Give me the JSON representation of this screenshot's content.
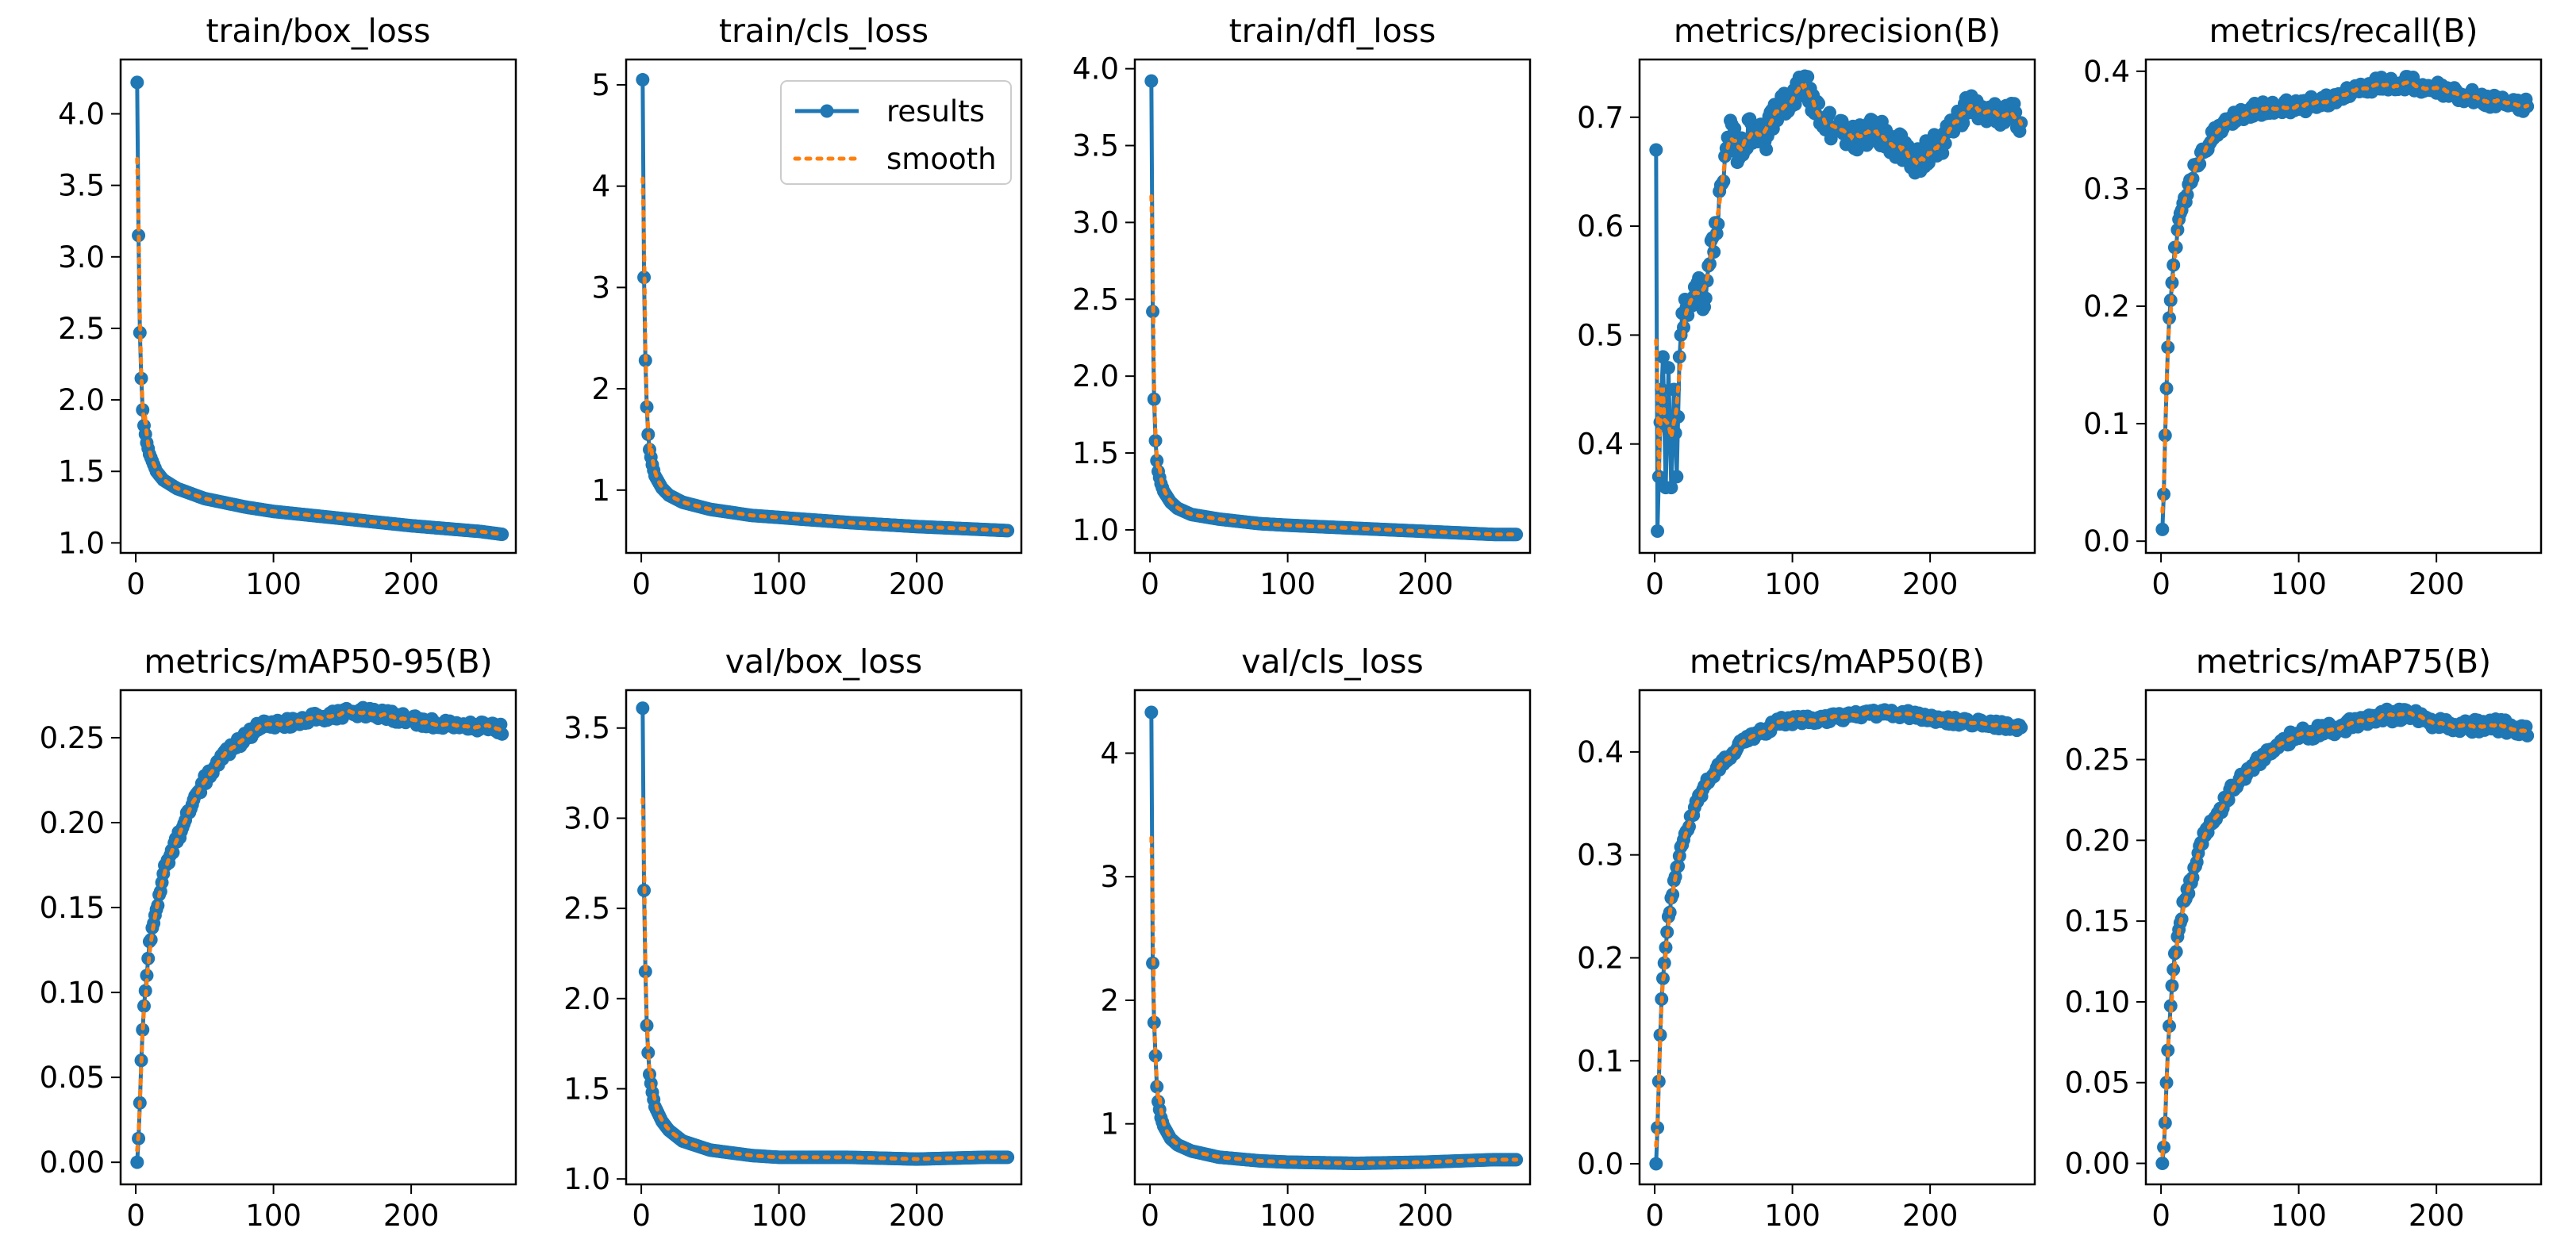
{
  "figure": {
    "legend": {
      "results_label": "results",
      "smooth_label": "smooth",
      "placement": "top-right of train/cls_loss"
    },
    "colors": {
      "results": "#1f77b4",
      "smooth": "#ff7f0e",
      "axes": "#000000"
    },
    "x_ticks": [
      0,
      100,
      200
    ],
    "x_range": [
      -11,
      276
    ]
  },
  "chart_data": [
    {
      "type": "line",
      "title": "train/box_loss",
      "ylim": [
        0.93,
        4.38
      ],
      "yticks": [
        1.0,
        1.5,
        2.0,
        2.5,
        3.0,
        3.5,
        4.0
      ],
      "ytick_labels": [
        "1.0",
        "1.5",
        "2.0",
        "2.5",
        "3.0",
        "3.5",
        "4.0"
      ],
      "anchors": [
        [
          1,
          4.22
        ],
        [
          2,
          3.15
        ],
        [
          3,
          2.47
        ],
        [
          4,
          2.15
        ],
        [
          5,
          1.93
        ],
        [
          6,
          1.82
        ],
        [
          8,
          1.7
        ],
        [
          10,
          1.62
        ],
        [
          15,
          1.5
        ],
        [
          20,
          1.44
        ],
        [
          30,
          1.38
        ],
        [
          50,
          1.31
        ],
        [
          80,
          1.25
        ],
        [
          100,
          1.22
        ],
        [
          150,
          1.17
        ],
        [
          200,
          1.12
        ],
        [
          250,
          1.08
        ],
        [
          266,
          1.06
        ]
      ]
    },
    {
      "type": "line",
      "title": "train/cls_loss",
      "ylim": [
        0.38,
        5.25
      ],
      "yticks": [
        1,
        2,
        3,
        4,
        5
      ],
      "ytick_labels": [
        "1",
        "2",
        "3",
        "4",
        "5"
      ],
      "legend": true,
      "anchors": [
        [
          1,
          5.05
        ],
        [
          2,
          3.1
        ],
        [
          3,
          2.28
        ],
        [
          4,
          1.82
        ],
        [
          5,
          1.55
        ],
        [
          6,
          1.4
        ],
        [
          8,
          1.25
        ],
        [
          10,
          1.14
        ],
        [
          15,
          1.02
        ],
        [
          20,
          0.95
        ],
        [
          30,
          0.88
        ],
        [
          50,
          0.81
        ],
        [
          80,
          0.75
        ],
        [
          100,
          0.73
        ],
        [
          150,
          0.68
        ],
        [
          200,
          0.64
        ],
        [
          250,
          0.61
        ],
        [
          266,
          0.6
        ]
      ]
    },
    {
      "type": "line",
      "title": "train/dfl_loss",
      "ylim": [
        0.85,
        4.06
      ],
      "yticks": [
        1.0,
        1.5,
        2.0,
        2.5,
        3.0,
        3.5,
        4.0
      ],
      "ytick_labels": [
        "1.0",
        "1.5",
        "2.0",
        "2.5",
        "3.0",
        "3.5",
        "4.0"
      ],
      "anchors": [
        [
          1,
          3.92
        ],
        [
          2,
          2.42
        ],
        [
          3,
          1.85
        ],
        [
          4,
          1.58
        ],
        [
          5,
          1.45
        ],
        [
          6,
          1.38
        ],
        [
          8,
          1.3
        ],
        [
          10,
          1.25
        ],
        [
          15,
          1.18
        ],
        [
          20,
          1.14
        ],
        [
          30,
          1.1
        ],
        [
          50,
          1.07
        ],
        [
          80,
          1.04
        ],
        [
          100,
          1.03
        ],
        [
          150,
          1.01
        ],
        [
          200,
          0.99
        ],
        [
          250,
          0.97
        ],
        [
          266,
          0.97
        ]
      ]
    },
    {
      "type": "line",
      "title": "metrics/precision(B)",
      "ylim": [
        0.3,
        0.753
      ],
      "yticks": [
        0.4,
        0.5,
        0.6,
        0.7
      ],
      "ytick_labels": [
        "0.4",
        "0.5",
        "0.6",
        "0.7"
      ],
      "anchors": [
        [
          1,
          0.67
        ],
        [
          2,
          0.32
        ],
        [
          4,
          0.42
        ],
        [
          6,
          0.48
        ],
        [
          8,
          0.36
        ],
        [
          10,
          0.47
        ],
        [
          12,
          0.36
        ],
        [
          14,
          0.45
        ],
        [
          16,
          0.37
        ],
        [
          18,
          0.48
        ],
        [
          20,
          0.52
        ],
        [
          25,
          0.52
        ],
        [
          30,
          0.55
        ],
        [
          35,
          0.53
        ],
        [
          40,
          0.57
        ],
        [
          45,
          0.6
        ],
        [
          50,
          0.65
        ],
        [
          55,
          0.69
        ],
        [
          60,
          0.67
        ],
        [
          70,
          0.69
        ],
        [
          80,
          0.68
        ],
        [
          90,
          0.71
        ],
        [
          100,
          0.72
        ],
        [
          110,
          0.73
        ],
        [
          120,
          0.7
        ],
        [
          130,
          0.69
        ],
        [
          140,
          0.68
        ],
        [
          150,
          0.68
        ],
        [
          160,
          0.69
        ],
        [
          170,
          0.68
        ],
        [
          180,
          0.67
        ],
        [
          190,
          0.66
        ],
        [
          200,
          0.67
        ],
        [
          210,
          0.68
        ],
        [
          220,
          0.7
        ],
        [
          230,
          0.71
        ],
        [
          240,
          0.7
        ],
        [
          250,
          0.7
        ],
        [
          266,
          0.7
        ]
      ],
      "noise": 0.013,
      "noise_after": 20
    },
    {
      "type": "line",
      "title": "metrics/recall(B)",
      "ylim": [
        -0.01,
        0.41
      ],
      "yticks": [
        0.0,
        0.1,
        0.2,
        0.3,
        0.4
      ],
      "ytick_labels": [
        "0.0",
        "0.1",
        "0.2",
        "0.3",
        "0.4"
      ],
      "anchors": [
        [
          1,
          0.01
        ],
        [
          2,
          0.04
        ],
        [
          3,
          0.09
        ],
        [
          4,
          0.13
        ],
        [
          5,
          0.165
        ],
        [
          6,
          0.19
        ],
        [
          8,
          0.22
        ],
        [
          10,
          0.25
        ],
        [
          15,
          0.28
        ],
        [
          20,
          0.3
        ],
        [
          25,
          0.32
        ],
        [
          30,
          0.33
        ],
        [
          40,
          0.35
        ],
        [
          50,
          0.36
        ],
        [
          60,
          0.365
        ],
        [
          80,
          0.37
        ],
        [
          100,
          0.37
        ],
        [
          120,
          0.375
        ],
        [
          140,
          0.385
        ],
        [
          160,
          0.39
        ],
        [
          180,
          0.39
        ],
        [
          200,
          0.385
        ],
        [
          220,
          0.38
        ],
        [
          240,
          0.375
        ],
        [
          266,
          0.37
        ]
      ],
      "noise": 0.006,
      "noise_after": 10
    },
    {
      "type": "line",
      "title": "metrics/mAP50-95(B)",
      "ylim": [
        -0.013,
        0.278
      ],
      "yticks": [
        0.0,
        0.05,
        0.1,
        0.15,
        0.2,
        0.25
      ],
      "ytick_labels": [
        "0.00",
        "0.05",
        "0.10",
        "0.15",
        "0.20",
        "0.25"
      ],
      "anchors": [
        [
          1,
          0.0
        ],
        [
          2,
          0.014
        ],
        [
          3,
          0.035
        ],
        [
          4,
          0.06
        ],
        [
          5,
          0.078
        ],
        [
          6,
          0.092
        ],
        [
          8,
          0.11
        ],
        [
          10,
          0.13
        ],
        [
          15,
          0.15
        ],
        [
          20,
          0.17
        ],
        [
          25,
          0.18
        ],
        [
          30,
          0.19
        ],
        [
          40,
          0.21
        ],
        [
          50,
          0.225
        ],
        [
          60,
          0.235
        ],
        [
          70,
          0.245
        ],
        [
          80,
          0.25
        ],
        [
          90,
          0.257
        ],
        [
          100,
          0.258
        ],
        [
          120,
          0.26
        ],
        [
          140,
          0.263
        ],
        [
          160,
          0.265
        ],
        [
          180,
          0.264
        ],
        [
          200,
          0.26
        ],
        [
          220,
          0.258
        ],
        [
          240,
          0.257
        ],
        [
          266,
          0.255
        ]
      ],
      "noise": 0.003,
      "noise_after": 10
    },
    {
      "type": "line",
      "title": "val/box_loss",
      "ylim": [
        0.97,
        3.71
      ],
      "yticks": [
        1.0,
        1.5,
        2.0,
        2.5,
        3.0,
        3.5
      ],
      "ytick_labels": [
        "1.0",
        "1.5",
        "2.0",
        "2.5",
        "3.0",
        "3.5"
      ],
      "anchors": [
        [
          1,
          3.61
        ],
        [
          2,
          2.6
        ],
        [
          3,
          2.15
        ],
        [
          4,
          1.85
        ],
        [
          5,
          1.7
        ],
        [
          6,
          1.58
        ],
        [
          8,
          1.48
        ],
        [
          10,
          1.4
        ],
        [
          15,
          1.32
        ],
        [
          20,
          1.27
        ],
        [
          30,
          1.21
        ],
        [
          50,
          1.16
        ],
        [
          80,
          1.13
        ],
        [
          100,
          1.12
        ],
        [
          150,
          1.12
        ],
        [
          200,
          1.11
        ],
        [
          250,
          1.12
        ],
        [
          266,
          1.12
        ]
      ]
    },
    {
      "type": "line",
      "title": "val/cls_loss",
      "ylim": [
        0.51,
        4.51
      ],
      "yticks": [
        1,
        2,
        3,
        4
      ],
      "ytick_labels": [
        "1",
        "2",
        "3",
        "4"
      ],
      "anchors": [
        [
          1,
          4.33
        ],
        [
          2,
          2.3
        ],
        [
          3,
          1.82
        ],
        [
          4,
          1.55
        ],
        [
          5,
          1.3
        ],
        [
          6,
          1.18
        ],
        [
          8,
          1.05
        ],
        [
          10,
          0.98
        ],
        [
          15,
          0.88
        ],
        [
          20,
          0.83
        ],
        [
          30,
          0.78
        ],
        [
          50,
          0.73
        ],
        [
          80,
          0.7
        ],
        [
          100,
          0.69
        ],
        [
          150,
          0.68
        ],
        [
          200,
          0.69
        ],
        [
          250,
          0.71
        ],
        [
          266,
          0.71
        ]
      ]
    },
    {
      "type": "line",
      "title": "metrics/mAP50(B)",
      "ylim": [
        -0.02,
        0.46
      ],
      "yticks": [
        0.0,
        0.1,
        0.2,
        0.3,
        0.4
      ],
      "ytick_labels": [
        "0.0",
        "0.1",
        "0.2",
        "0.3",
        "0.4"
      ],
      "anchors": [
        [
          1,
          0.0
        ],
        [
          2,
          0.035
        ],
        [
          3,
          0.08
        ],
        [
          4,
          0.125
        ],
        [
          5,
          0.16
        ],
        [
          6,
          0.18
        ],
        [
          8,
          0.21
        ],
        [
          10,
          0.24
        ],
        [
          15,
          0.28
        ],
        [
          20,
          0.31
        ],
        [
          25,
          0.33
        ],
        [
          30,
          0.35
        ],
        [
          40,
          0.375
        ],
        [
          50,
          0.39
        ],
        [
          60,
          0.405
        ],
        [
          70,
          0.415
        ],
        [
          80,
          0.42
        ],
        [
          90,
          0.43
        ],
        [
          100,
          0.43
        ],
        [
          120,
          0.432
        ],
        [
          140,
          0.435
        ],
        [
          160,
          0.437
        ],
        [
          180,
          0.437
        ],
        [
          200,
          0.433
        ],
        [
          220,
          0.43
        ],
        [
          240,
          0.428
        ],
        [
          266,
          0.423
        ]
      ],
      "noise": 0.004,
      "noise_after": 10
    },
    {
      "type": "line",
      "title": "metrics/mAP75(B)",
      "ylim": [
        -0.013,
        0.293
      ],
      "yticks": [
        0.0,
        0.05,
        0.1,
        0.15,
        0.2,
        0.25
      ],
      "ytick_labels": [
        "0.00",
        "0.05",
        "0.10",
        "0.15",
        "0.20",
        "0.25"
      ],
      "anchors": [
        [
          1,
          0.0
        ],
        [
          2,
          0.01
        ],
        [
          3,
          0.025
        ],
        [
          4,
          0.05
        ],
        [
          5,
          0.07
        ],
        [
          6,
          0.085
        ],
        [
          8,
          0.11
        ],
        [
          10,
          0.13
        ],
        [
          15,
          0.155
        ],
        [
          20,
          0.17
        ],
        [
          25,
          0.185
        ],
        [
          30,
          0.2
        ],
        [
          40,
          0.215
        ],
        [
          50,
          0.23
        ],
        [
          60,
          0.24
        ],
        [
          70,
          0.25
        ],
        [
          80,
          0.255
        ],
        [
          90,
          0.262
        ],
        [
          100,
          0.265
        ],
        [
          120,
          0.268
        ],
        [
          140,
          0.272
        ],
        [
          160,
          0.277
        ],
        [
          180,
          0.278
        ],
        [
          200,
          0.272
        ],
        [
          220,
          0.27
        ],
        [
          240,
          0.272
        ],
        [
          266,
          0.268
        ]
      ],
      "noise": 0.004,
      "noise_after": 10
    }
  ]
}
